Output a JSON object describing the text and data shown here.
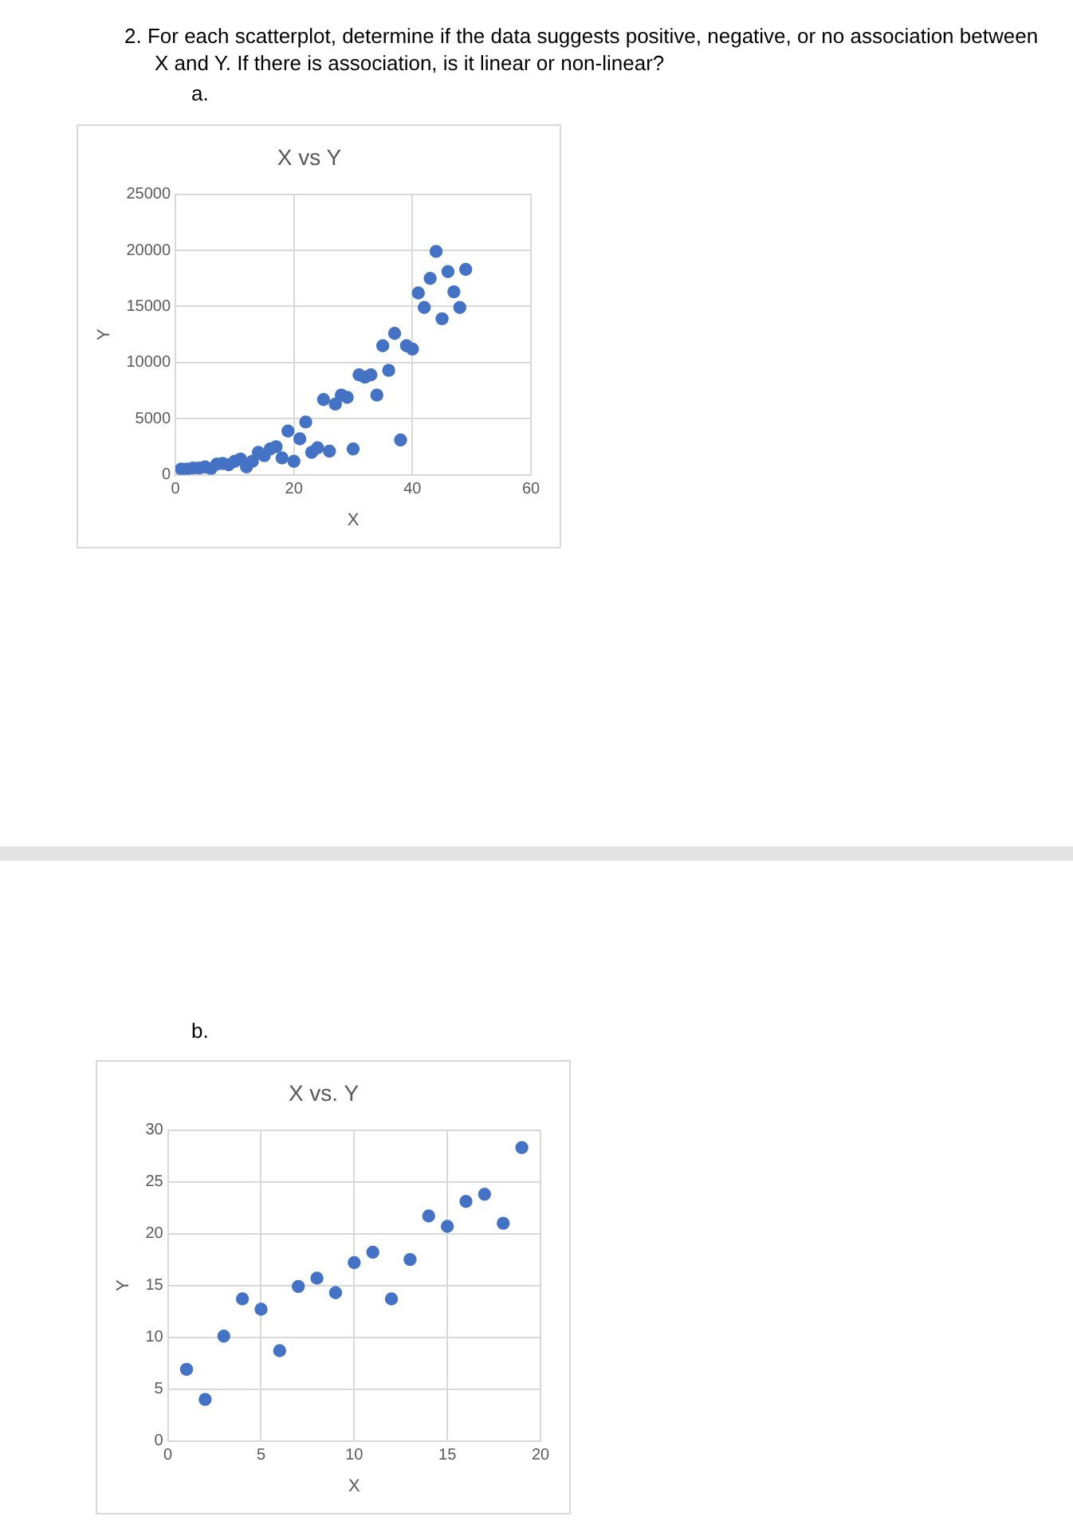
{
  "chart_data": [
    {
      "type": "scatter",
      "title": "X vs Y",
      "xlabel": "X",
      "ylabel": "Y",
      "annotations": [
        "2. For each scatterplot, determine if the data suggests positive, negative, or no association between X and Y.  If there is association, is it linear or non-linear?",
        "a."
      ],
      "x": [
        1,
        2,
        3,
        4,
        5,
        6,
        7,
        8,
        9,
        10,
        11,
        12,
        13,
        14,
        15,
        16,
        17,
        18,
        19,
        20,
        21,
        22,
        23,
        24,
        25,
        26,
        27,
        28,
        29,
        30,
        31,
        32,
        33,
        34,
        35,
        36,
        37,
        38,
        39,
        40,
        41,
        42,
        43,
        44,
        45,
        46,
        47,
        48,
        49
      ],
      "values": [
        500,
        500,
        600,
        600,
        700,
        550,
        950,
        1000,
        900,
        1200,
        1400,
        700,
        1200,
        2000,
        1700,
        2300,
        2500,
        1500,
        3900,
        1200,
        3200,
        4700,
        2000,
        2400,
        6700,
        2100,
        6300,
        7100,
        6900,
        2300,
        8900,
        8700,
        8900,
        7100,
        11500,
        9300,
        12600,
        3100,
        11500,
        11200,
        16200,
        14900,
        17500,
        19900,
        13900,
        18100,
        16300,
        14900,
        18300
      ],
      "color": "#4472c4",
      "marker": "circle",
      "xlim": [
        0,
        60
      ],
      "xticks": [
        0,
        20,
        40,
        60
      ],
      "ylim": [
        0,
        25000
      ],
      "yticks": [
        0,
        5000,
        10000,
        15000,
        20000,
        25000
      ],
      "grid": true
    },
    {
      "type": "scatter",
      "title": "X vs. Y",
      "xlabel": "X",
      "ylabel": "Y",
      "annotations": [
        "b."
      ],
      "x": [
        1,
        2,
        3,
        4,
        5,
        6,
        7,
        8,
        9,
        10,
        11,
        12,
        13,
        14,
        15,
        16,
        17,
        18,
        19
      ],
      "values": [
        6.9,
        4.0,
        10.1,
        13.7,
        12.7,
        8.7,
        14.9,
        15.7,
        14.3,
        17.2,
        18.2,
        13.7,
        17.5,
        21.7,
        20.7,
        23.1,
        23.8,
        21.0,
        28.3
      ],
      "color": "#4472c4",
      "marker": "circle",
      "xlim": [
        0,
        20
      ],
      "xticks": [
        0,
        5,
        10,
        15,
        20
      ],
      "ylim": [
        0,
        30
      ],
      "yticks": [
        0,
        5,
        10,
        15,
        20,
        25,
        30
      ],
      "grid": true
    }
  ]
}
